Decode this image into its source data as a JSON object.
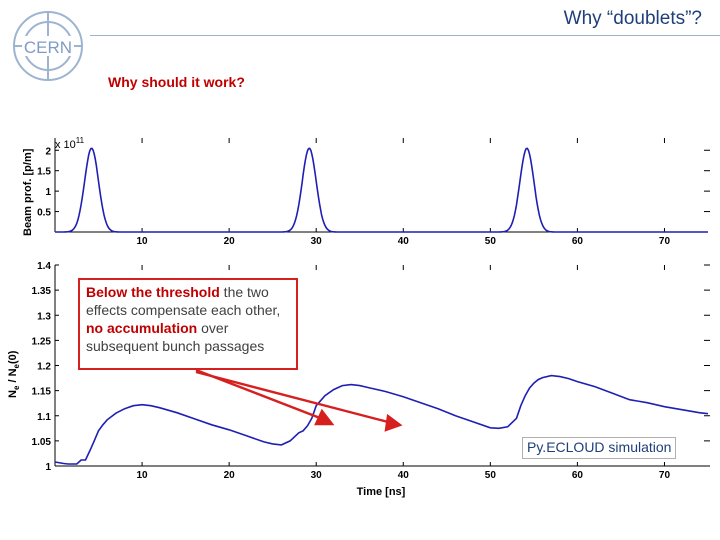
{
  "header": {
    "title": "Why “doublets”?",
    "subtitle": "Why should it work?",
    "logo_text": "CERN"
  },
  "callout": {
    "part1": "Below the threshold",
    "part2": " the two effects compensate each other, ",
    "part3": "no accumulation",
    "part4": " over subsequent bunch passages"
  },
  "simulation_label": "Py.ECLOUD simulation",
  "colors": {
    "curve": "#1f1fb4",
    "title": "#1f3f7a",
    "accent": "#c00000",
    "arrow": "#d62020"
  },
  "chart_data": [
    {
      "type": "line",
      "ylabel": "Beam prof. [p/m]",
      "xlabel": "",
      "multiplier": "x 10",
      "multiplier_exponent": "11",
      "x_ticks": [
        10,
        20,
        30,
        40,
        50,
        60,
        70
      ],
      "y_ticks": [
        0.5,
        1,
        1.5,
        2
      ],
      "y_tick_labels": [
        "0.5",
        "1",
        "1.5",
        "2"
      ],
      "xlim": [
        0,
        75
      ],
      "ylim": [
        0,
        2.3
      ],
      "grid": false,
      "peaks": [
        {
          "x": 4.2,
          "y": 2.05
        },
        {
          "x": 29.2,
          "y": 2.05
        },
        {
          "x": 54.2,
          "y": 2.05
        }
      ],
      "peak_sigma": 0.8
    },
    {
      "type": "line",
      "ylabel": "N_e / N_e(0)",
      "xlabel": "Time [ns]",
      "x_ticks": [
        10,
        20,
        30,
        40,
        50,
        60,
        70
      ],
      "y_ticks": [
        1,
        1.05,
        1.1,
        1.15,
        1.2,
        1.25,
        1.3,
        1.35,
        1.4
      ],
      "y_tick_labels": [
        "1",
        "1.05",
        "1.1",
        "1.15",
        "1.2",
        "1.25",
        "1.3",
        "1.35",
        "1.4"
      ],
      "xlim": [
        0,
        75
      ],
      "ylim": [
        1,
        1.4
      ],
      "grid": false,
      "x": [
        0,
        1,
        1.5,
        2.5,
        3,
        3.5,
        4,
        4.5,
        5,
        5.5,
        6,
        7,
        8,
        9,
        10,
        11,
        12,
        14,
        16,
        18,
        20,
        22,
        24,
        25,
        26,
        27,
        28,
        28.5,
        29,
        29.5,
        30,
        30.5,
        31,
        32,
        33,
        34,
        35,
        36,
        38,
        40,
        42,
        44,
        46,
        48,
        50,
        51,
        52,
        53,
        53.5,
        54,
        54.5,
        55,
        55.5,
        56,
        57,
        58,
        59,
        60,
        62,
        64,
        66,
        68,
        70,
        72,
        74,
        75
      ],
      "y": [
        1.008,
        1.005,
        1.004,
        1.004,
        1.012,
        1.012,
        1.03,
        1.05,
        1.07,
        1.082,
        1.092,
        1.105,
        1.114,
        1.12,
        1.122,
        1.12,
        1.116,
        1.106,
        1.094,
        1.082,
        1.072,
        1.06,
        1.048,
        1.044,
        1.042,
        1.05,
        1.066,
        1.07,
        1.08,
        1.095,
        1.12,
        1.13,
        1.14,
        1.152,
        1.16,
        1.162,
        1.16,
        1.156,
        1.148,
        1.138,
        1.126,
        1.114,
        1.1,
        1.088,
        1.076,
        1.075,
        1.078,
        1.095,
        1.12,
        1.14,
        1.155,
        1.165,
        1.172,
        1.176,
        1.18,
        1.178,
        1.174,
        1.168,
        1.158,
        1.145,
        1.132,
        1.126,
        1.118,
        1.112,
        1.106,
        1.104
      ]
    }
  ]
}
